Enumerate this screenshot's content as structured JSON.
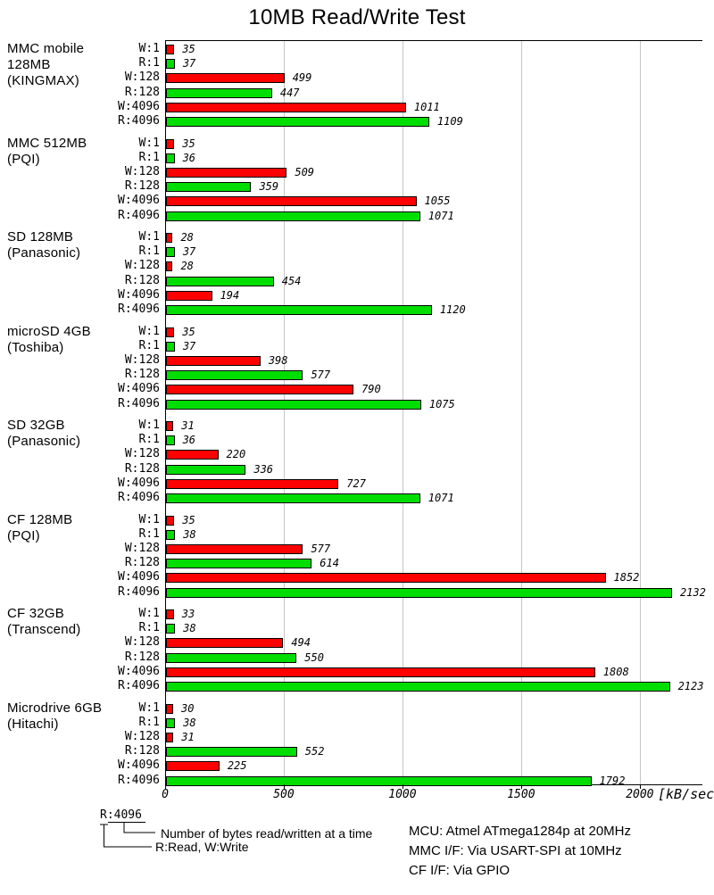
{
  "title": "10MB Read/Write Test",
  "chart_data": {
    "type": "bar",
    "orientation": "horizontal",
    "title": "10MB Read/Write Test",
    "xlabel_unit": "[kB/sec]",
    "xlim": [
      0,
      2260
    ],
    "xticks": [
      0,
      500,
      1000,
      1500,
      2000
    ],
    "grid": true,
    "row_labels": [
      "W:1",
      "R:1",
      "W:128",
      "R:128",
      "W:4096",
      "R:4096"
    ],
    "colors": {
      "write": "#ff0000",
      "read": "#00dd00",
      "bar_border": "#000000",
      "gridline": "#c6c6c6"
    },
    "groups": [
      {
        "device": [
          "MMC mobile",
          "128MB",
          "(KINGMAX)"
        ],
        "values": [
          35,
          37,
          499,
          447,
          1011,
          1109
        ]
      },
      {
        "device": [
          "MMC 512MB",
          "(PQI)"
        ],
        "values": [
          35,
          36,
          509,
          359,
          1055,
          1071
        ]
      },
      {
        "device": [
          "SD 128MB",
          "(Panasonic)"
        ],
        "values": [
          28,
          37,
          28,
          454,
          194,
          1120
        ]
      },
      {
        "device": [
          "microSD 4GB",
          "(Toshiba)"
        ],
        "values": [
          35,
          37,
          398,
          577,
          790,
          1075
        ]
      },
      {
        "device": [
          "SD 32GB",
          "(Panasonic)"
        ],
        "values": [
          31,
          36,
          220,
          336,
          727,
          1071
        ]
      },
      {
        "device": [
          "CF 128MB",
          "(PQI)"
        ],
        "values": [
          35,
          38,
          577,
          614,
          1852,
          2132
        ]
      },
      {
        "device": [
          "CF 32GB",
          "(Transcend)"
        ],
        "values": [
          33,
          38,
          494,
          550,
          1808,
          2123
        ]
      },
      {
        "device": [
          "Microdrive 6GB",
          "(Hitachi)"
        ],
        "values": [
          30,
          38,
          31,
          552,
          225,
          1792
        ]
      }
    ]
  },
  "legend": {
    "example": "R:4096",
    "bytes_note": "Number of bytes read/written at a time",
    "rw_note": "R:Read, W:Write"
  },
  "info": {
    "mcu": "MCU: Atmel ATmega1284p at 20MHz",
    "mmc_if": "MMC I/F: Via USART-SPI at 10MHz",
    "cf_if": "CF I/F: Via GPIO"
  }
}
